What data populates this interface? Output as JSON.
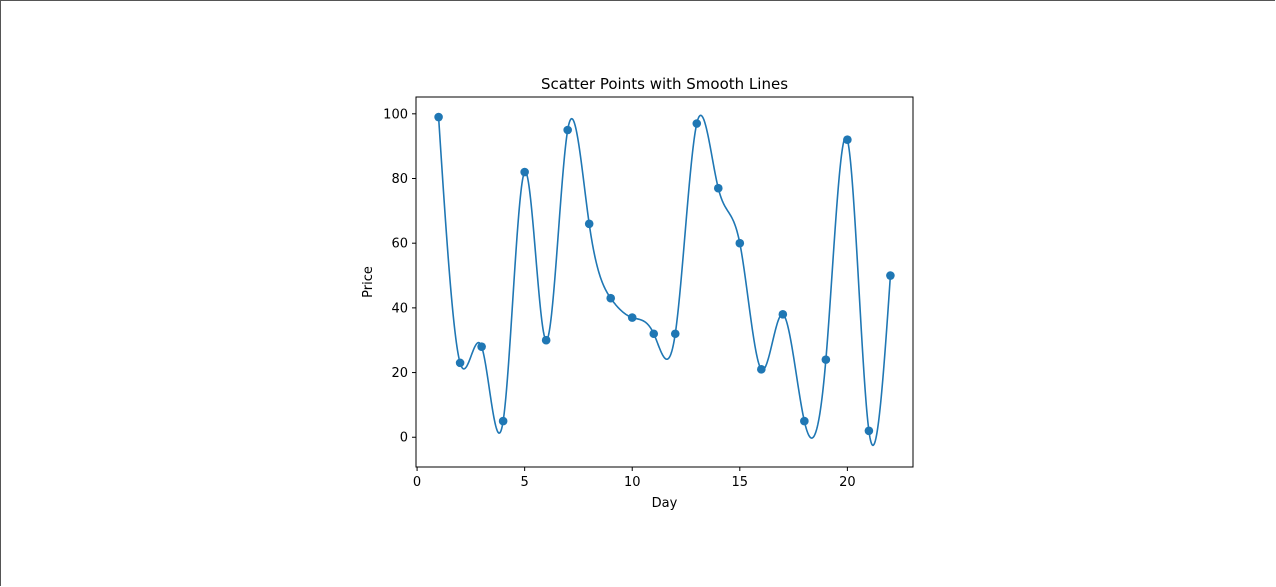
{
  "chart_data": {
    "type": "scatter",
    "title": "Scatter Points with Smooth Lines",
    "xlabel": "Day",
    "ylabel": "Price",
    "xlim": [
      -0.05,
      23.05
    ],
    "ylim": [
      -9.2,
      105.2
    ],
    "xticks": [
      0,
      5,
      10,
      15,
      20
    ],
    "yticks": [
      0,
      20,
      40,
      60,
      80,
      100
    ],
    "grid": false,
    "colors": {
      "series": "#1f77b4"
    },
    "series": [
      {
        "x": [
          1,
          2,
          3,
          4,
          5,
          6,
          7,
          8,
          9,
          10,
          11,
          12,
          13,
          14,
          15,
          16,
          17,
          18,
          19,
          20,
          21,
          22
        ],
        "values": [
          99,
          23,
          28,
          5,
          82,
          30,
          95,
          66,
          43,
          37,
          32,
          32,
          97,
          77,
          60,
          21,
          38,
          5,
          24,
          92,
          2,
          50
        ]
      }
    ]
  }
}
